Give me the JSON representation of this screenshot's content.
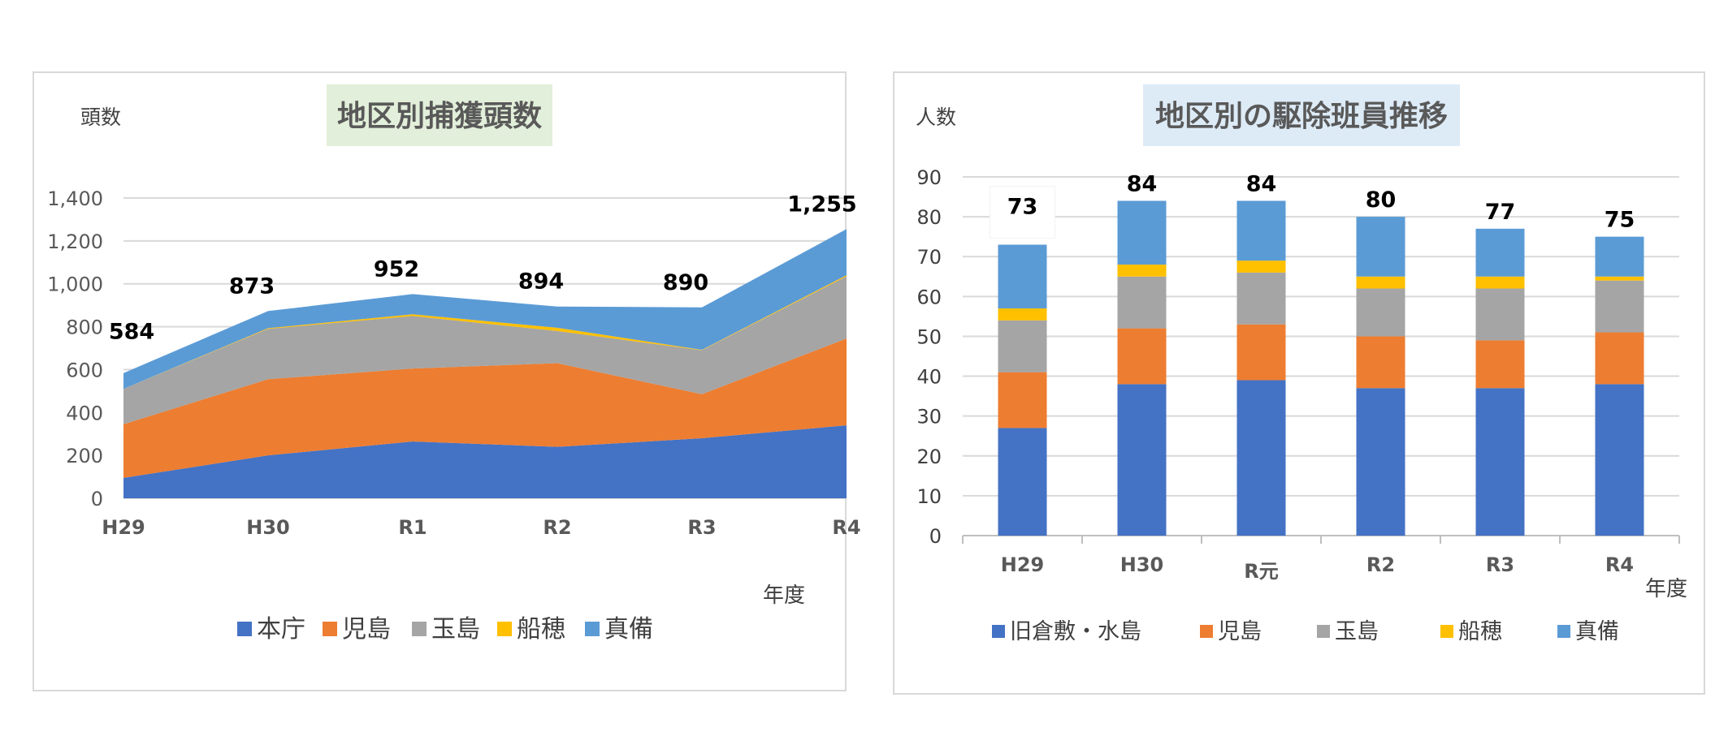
{
  "chart_data": [
    {
      "type": "area",
      "stacked": true,
      "title": "地区別捕獲頭数",
      "ylabel": "頭数",
      "xlabel": "年度",
      "categories": [
        "H29",
        "H30",
        "R1",
        "R2",
        "R3",
        "R4"
      ],
      "ylim": [
        0,
        1400
      ],
      "yticks": [
        "0",
        "200",
        "400",
        "600",
        "800",
        "1,000",
        "1,200",
        "1,400"
      ],
      "totals": [
        "584",
        "873",
        "952",
        "894",
        "890",
        "1,255"
      ],
      "legend_position": "bottom",
      "grid": true,
      "series": [
        {
          "name": "本庁",
          "color": "#4472C4",
          "values": [
            95,
            200,
            265,
            240,
            280,
            340
          ]
        },
        {
          "name": "児島",
          "color": "#ED7D31",
          "values": [
            250,
            355,
            340,
            390,
            205,
            405
          ]
        },
        {
          "name": "玉島",
          "color": "#A5A5A5",
          "values": [
            165,
            235,
            245,
            150,
            205,
            290
          ]
        },
        {
          "name": "船穂",
          "color": "#FFC000",
          "values": [
            0,
            3,
            8,
            15,
            2,
            5
          ]
        },
        {
          "name": "真備",
          "color": "#5B9BD5",
          "values": [
            74,
            80,
            94,
            99,
            198,
            215
          ]
        }
      ]
    },
    {
      "type": "bar",
      "stacked": true,
      "title": "地区別の駆除班員推移",
      "ylabel": "人数",
      "xlabel": "年度",
      "categories": [
        "H29",
        "H30",
        "R元",
        "R2",
        "R3",
        "R4"
      ],
      "ylim": [
        0,
        90
      ],
      "yticks": [
        "0",
        "10",
        "20",
        "30",
        "40",
        "50",
        "60",
        "70",
        "80",
        "90"
      ],
      "totals": [
        "73",
        "84",
        "84",
        "80",
        "77",
        "75"
      ],
      "legend_position": "bottom",
      "grid": true,
      "series": [
        {
          "name": "旧倉敷・水島",
          "color": "#4472C4",
          "values": [
            27,
            38,
            39,
            37,
            37,
            38
          ]
        },
        {
          "name": "児島",
          "color": "#ED7D31",
          "values": [
            14,
            14,
            14,
            13,
            12,
            13
          ]
        },
        {
          "name": "玉島",
          "color": "#A5A5A5",
          "values": [
            13,
            13,
            13,
            12,
            13,
            13
          ]
        },
        {
          "name": "船穂",
          "color": "#FFC000",
          "values": [
            3,
            3,
            3,
            3,
            3,
            1
          ]
        },
        {
          "name": "真備",
          "color": "#5B9BD5",
          "values": [
            16,
            16,
            15,
            15,
            12,
            10
          ]
        }
      ]
    }
  ]
}
